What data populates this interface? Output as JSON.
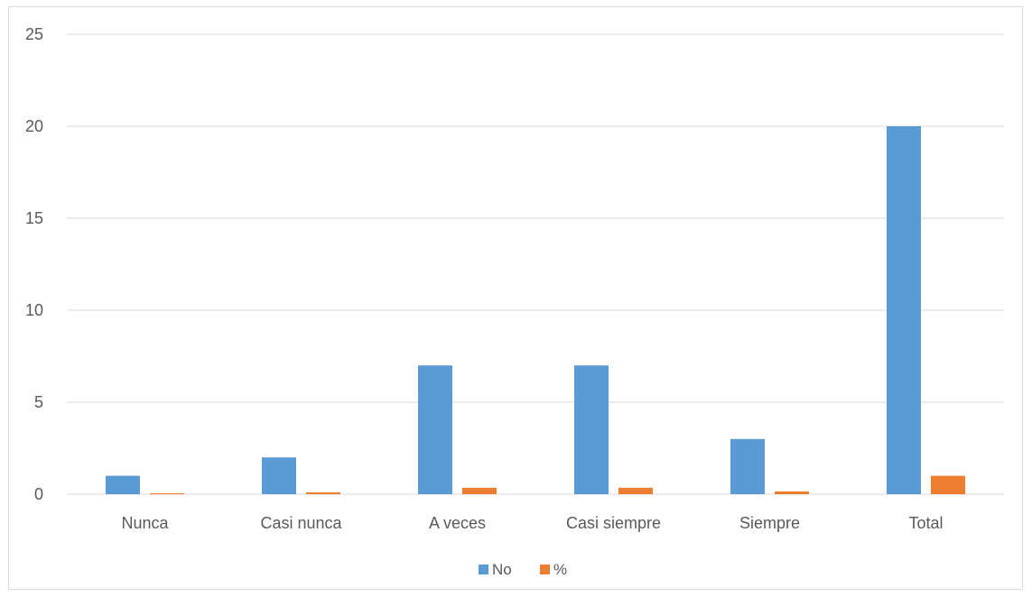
{
  "chart_data": {
    "type": "bar",
    "categories": [
      "Nunca",
      "Casi nunca",
      "A veces",
      "Casi siempre",
      "Siempre",
      "Total"
    ],
    "series": [
      {
        "name": "No",
        "values": [
          1,
          2,
          7,
          7,
          3,
          20
        ],
        "color": "#5b9bd5"
      },
      {
        "name": "%",
        "values": [
          0.05,
          0.1,
          0.35,
          0.35,
          0.15,
          1
        ],
        "color": "#ed7d31"
      }
    ],
    "ylim": [
      0,
      25
    ],
    "yticks": [
      0,
      5,
      10,
      15,
      20,
      25
    ],
    "grid": true,
    "legend_position": "bottom",
    "gridline_color": "#d9d9d9",
    "axis_line_color": "#d9d9d9"
  }
}
